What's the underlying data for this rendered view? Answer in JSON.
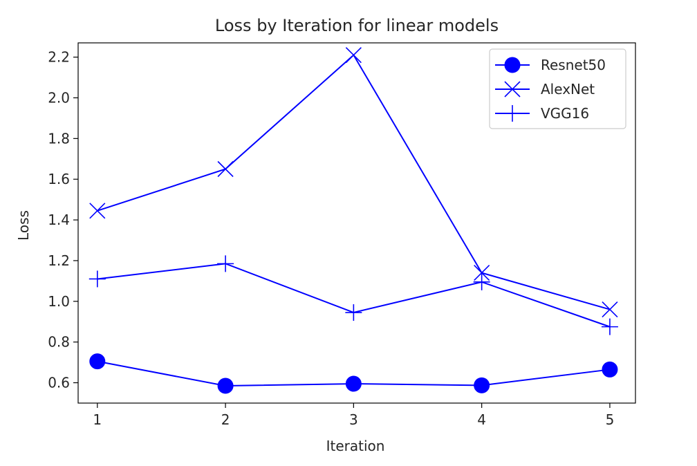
{
  "chart_data": {
    "type": "line",
    "title": "Loss by Iteration for linear models",
    "xlabel": "Iteration",
    "ylabel": "Loss",
    "x": [
      1,
      2,
      3,
      4,
      5
    ],
    "x_ticks": [
      "1",
      "2",
      "3",
      "4",
      "5"
    ],
    "y_ticks": [
      "0.6",
      "0.8",
      "1.0",
      "1.2",
      "1.4",
      "1.6",
      "1.8",
      "2.0",
      "2.2"
    ],
    "y_tick_values": [
      0.6,
      0.8,
      1.0,
      1.2,
      1.4,
      1.6,
      1.8,
      2.0,
      2.2
    ],
    "xlim": [
      0.85,
      5.2
    ],
    "ylim": [
      0.5,
      2.27
    ],
    "grid": false,
    "legend_position": "top-right",
    "color": "#0000ff",
    "series": [
      {
        "name": "Resnet50",
        "marker": "circle",
        "values": [
          0.705,
          0.585,
          0.595,
          0.587,
          0.665
        ]
      },
      {
        "name": "AlexNet",
        "marker": "x",
        "values": [
          1.445,
          1.65,
          2.21,
          1.14,
          0.96
        ]
      },
      {
        "name": "VGG16",
        "marker": "plus",
        "values": [
          1.11,
          1.185,
          0.945,
          1.095,
          0.875
        ]
      }
    ]
  }
}
